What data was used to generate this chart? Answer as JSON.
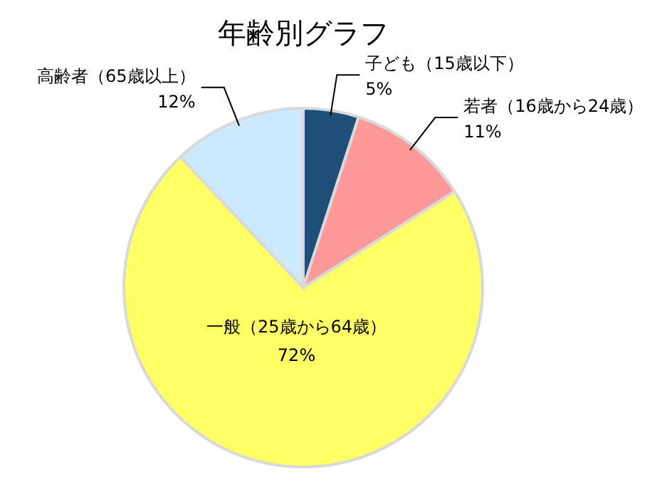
{
  "chart_data": {
    "type": "pie",
    "title": "年齢別グラフ",
    "categories": [
      "子ども（15歳以下）",
      "若者（16歳から24歳）",
      "一般（25歳から64歳）",
      "高齢者（65歳以上）"
    ],
    "values": [
      5,
      11,
      72,
      12
    ],
    "value_labels": [
      "5%",
      "11%",
      "72%",
      "12%"
    ],
    "colors": [
      "#1f4e79",
      "#ff9999",
      "#ffff66",
      "#cce9ff"
    ]
  }
}
